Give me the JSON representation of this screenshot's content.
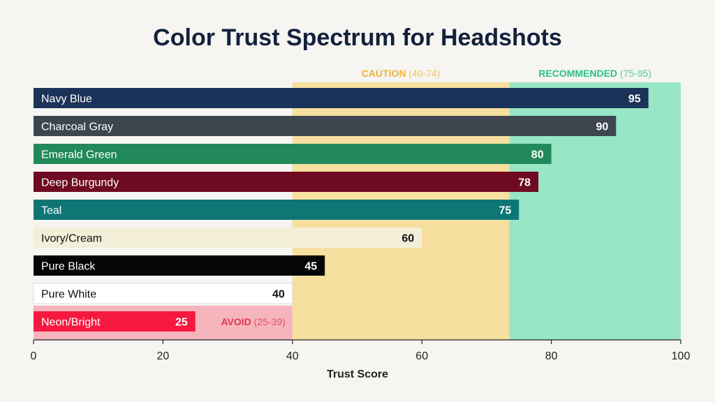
{
  "chart_data": {
    "type": "bar",
    "orientation": "horizontal",
    "title": "Color Trust Spectrum for Headshots",
    "xlabel": "Trust Score",
    "xlim": [
      0,
      100
    ],
    "xticks": [
      0,
      20,
      40,
      60,
      80,
      100
    ],
    "grid": false,
    "categories": [
      "Navy Blue",
      "Charcoal Gray",
      "Emerald Green",
      "Deep Burgundy",
      "Teal",
      "Ivory/Cream",
      "Pure Black",
      "Pure White",
      "Neon/Bright"
    ],
    "values": [
      95,
      90,
      80,
      78,
      75,
      60,
      45,
      40,
      25
    ],
    "colors": [
      "#1b3358",
      "#3d464e",
      "#22895a",
      "#6e0a22",
      "#0e7675",
      "#f3efd8",
      "#050505",
      "#ffffff",
      "#f5193f"
    ],
    "label_colors": [
      "#ffffff",
      "#ffffff",
      "#ffffff",
      "#ffffff",
      "#ffffff",
      "#111111",
      "#ffffff",
      "#111111",
      "#ffffff"
    ],
    "zones": [
      {
        "label": "AVOID",
        "range_label": "(25-39)",
        "range": [
          0,
          40
        ],
        "fill": "#f6b5bd",
        "text_color": "#e0344e"
      },
      {
        "label": "CAUTION",
        "range_label": "(40-74)",
        "range": [
          40,
          73.5
        ],
        "fill": "#f6df9f",
        "text_color": "#f0b43a"
      },
      {
        "label": "RECOMMENDED",
        "range_label": "(75-95)",
        "range": [
          73.5,
          100
        ],
        "fill": "#98e6c6",
        "text_color": "#2bc28a"
      }
    ]
  }
}
